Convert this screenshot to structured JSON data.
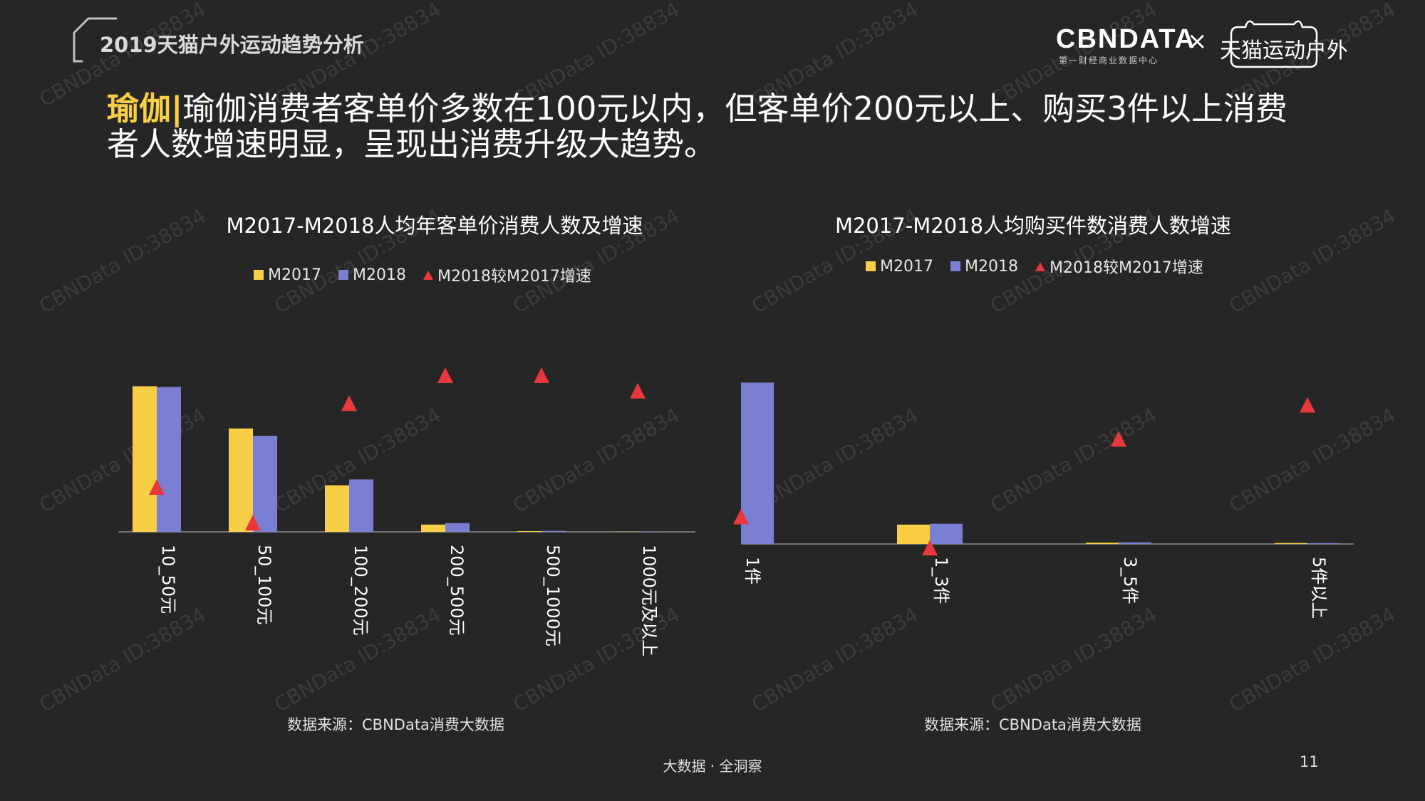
{
  "header": {
    "report_title": "2019天猫户外运动趋势分析",
    "keyword": "瑜伽|",
    "headline": "瑜伽消费者客单价多数在100元以内，但客单价200元以上、购买3件以上消费者人数增速明显，呈现出消费升级大趋势。"
  },
  "brand": {
    "cbn": "CBNDATA",
    "cbn_sub": "第一财经商业数据中心",
    "times": "×",
    "tmall": "天猫运动户外"
  },
  "watermark": "CBNData ID:38834",
  "colors": {
    "m2017": "#f7ce46",
    "m2018": "#7b7fd4",
    "growth": "#e8383d"
  },
  "chart_data": [
    {
      "type": "bar",
      "title": "M2017-M2018人均年客单价消费人数及增速",
      "legend": [
        "M2017",
        "M2018",
        "M2018较M2017增速"
      ],
      "categories": [
        "10_50元",
        "50_100元",
        "100_200元",
        "200_500元",
        "500_1000元",
        "1000元及以上"
      ],
      "series": [
        {
          "name": "M2017",
          "values": [
            100,
            71,
            32,
            5,
            0.5,
            0.1
          ]
        },
        {
          "name": "M2018",
          "values": [
            99.5,
            66,
            36,
            6,
            0.7,
            0.15
          ]
        }
      ],
      "growth_markers": [
        0.28,
        0.05,
        0.82,
        1.0,
        1.0,
        0.9
      ],
      "ylim": [
        0,
        110
      ],
      "source": "数据来源：CBNData消费大数据"
    },
    {
      "type": "bar",
      "title": "M2017-M2018人均购买件数消费人数增速",
      "legend": [
        "M2017",
        "M2018",
        "M2018较M2017增速"
      ],
      "categories": [
        "1件",
        "1_3件",
        "3_5件",
        "5件以上"
      ],
      "series": [
        {
          "name": "M2017",
          "values": [
            0,
            12,
            0.8,
            0.6
          ]
        },
        {
          "name": "M2018",
          "values": [
            100,
            12.5,
            1.0,
            0.5
          ]
        }
      ],
      "growth_markers": [
        0.25,
        0.05,
        0.75,
        0.97
      ],
      "ylim": [
        0,
        105
      ],
      "source": "数据来源：CBNData消费大数据"
    }
  ],
  "footer": {
    "slogan": "大数据 · 全洞察",
    "page": "11"
  }
}
